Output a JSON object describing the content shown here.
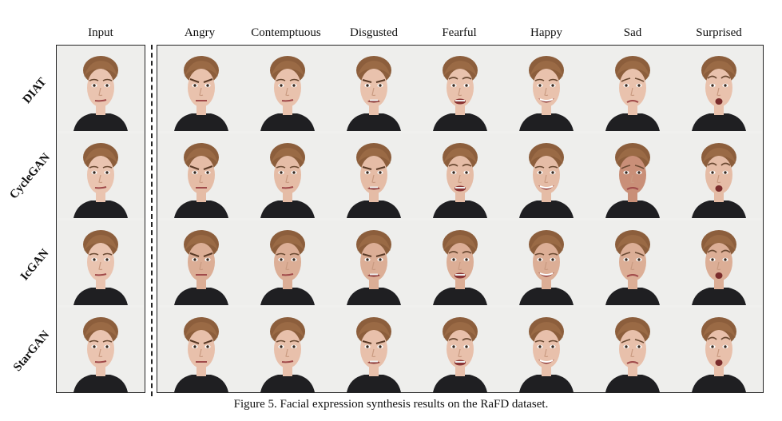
{
  "figure": {
    "caption": "Figure 5. Facial expression synthesis results on the RaFD dataset.",
    "input_header": "Input",
    "columns": [
      "Angry",
      "Contemptuous",
      "Disgusted",
      "Fearful",
      "Happy",
      "Sad",
      "Surprised"
    ],
    "rows": [
      "DIAT",
      "CycleGAN",
      "IcGAN",
      "StarGAN"
    ]
  }
}
